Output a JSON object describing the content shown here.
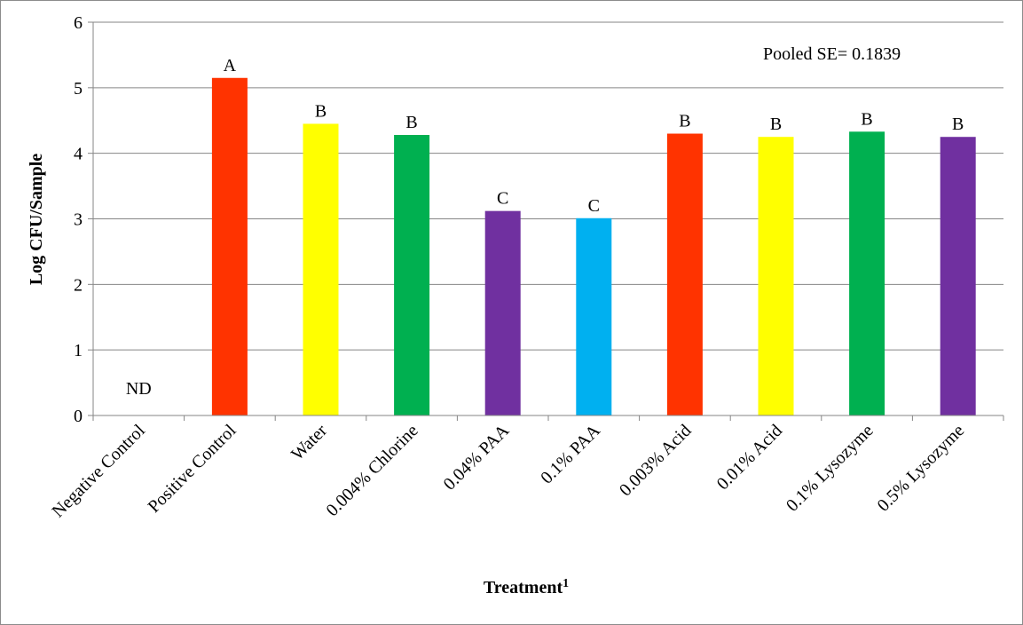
{
  "chart_data": {
    "type": "bar",
    "categories": [
      "Negative Control",
      "Positive Control",
      "Water",
      "0.004% Chlorine",
      "0.04% PAA",
      "0.1% PAA",
      "0.003% Acid",
      "0.01% Acid",
      "0.1% Lysozyme",
      "0.5% Lysozyme"
    ],
    "values": [
      0,
      5.15,
      4.45,
      4.28,
      3.12,
      3.01,
      4.3,
      4.25,
      4.33,
      4.25
    ],
    "bar_labels": [
      "ND",
      "A",
      "B",
      "B",
      "C",
      "C",
      "B",
      "B",
      "B",
      "B"
    ],
    "colors": [
      "#ff3300",
      "#ff3300",
      "#ffff00",
      "#00b050",
      "#7030a0",
      "#00b0f0",
      "#ff3300",
      "#ffff00",
      "#00b050",
      "#7030a0"
    ],
    "title": "",
    "xlabel": "Treatment",
    "xlabel_superscript": "1",
    "ylabel": "Log CFU/Sample",
    "ylim": [
      0,
      6
    ],
    "yticks": [
      0,
      1,
      2,
      3,
      4,
      5,
      6
    ],
    "grid": true,
    "annotation": "Pooled SE= 0.1839"
  }
}
